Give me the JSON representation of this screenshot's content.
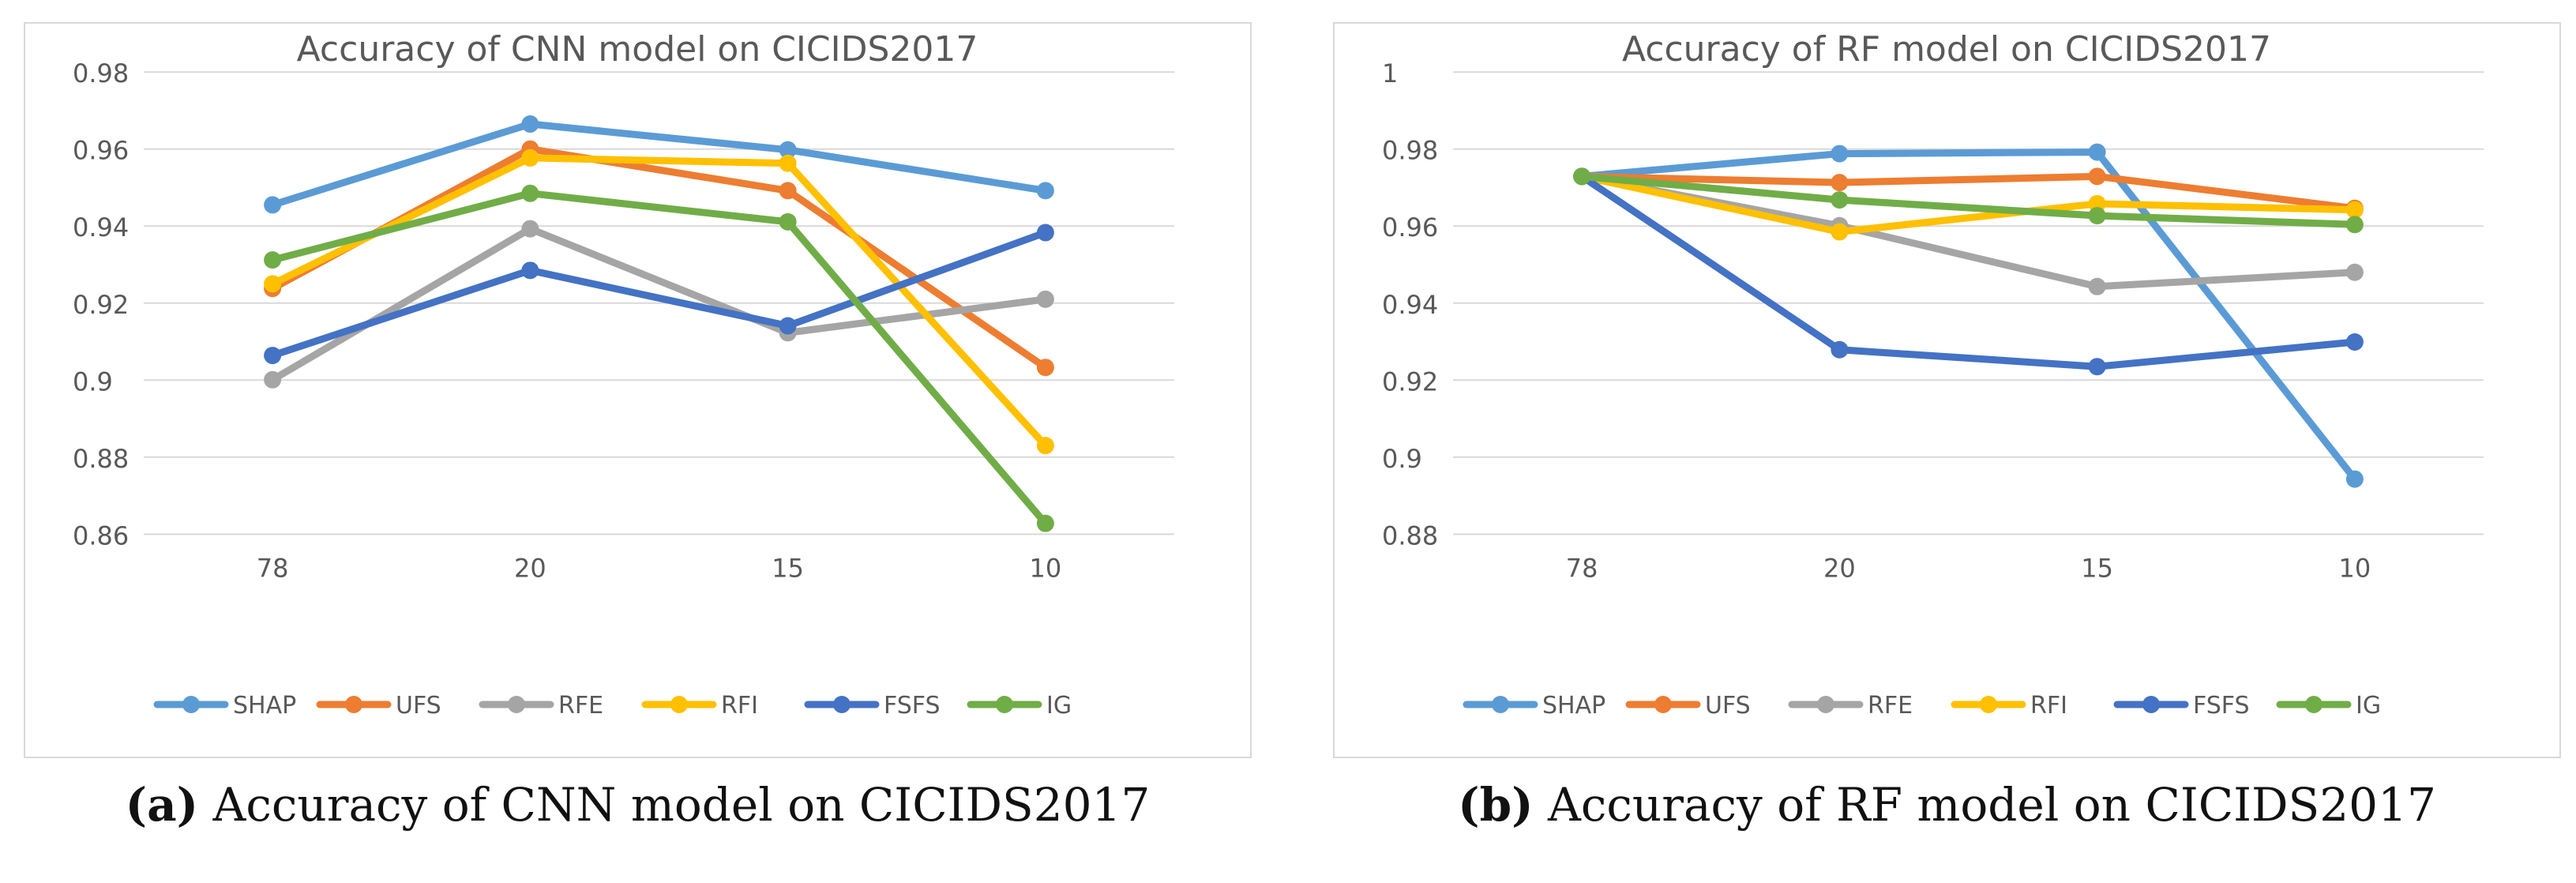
{
  "chart_data": [
    {
      "type": "line",
      "title": "Accuracy of CNN model on CICIDS2017",
      "xlabel": "",
      "ylabel": "",
      "categories": [
        "78",
        "20",
        "15",
        "10"
      ],
      "ylim": [
        0.86,
        0.98
      ],
      "yticks": [
        0.86,
        0.88,
        0.9,
        0.92,
        0.94,
        0.96,
        0.98
      ],
      "ytick_labels": [
        "0.86",
        "0.88",
        "0.9",
        "0.92",
        "0.94",
        "0.96",
        "0.98"
      ],
      "grid": true,
      "legend_position": "bottom",
      "series": [
        {
          "name": "SHAP",
          "color": "#5B9BD5",
          "values": [
            0.9455,
            0.9665,
            0.9598,
            0.9492
          ]
        },
        {
          "name": "UFS",
          "color": "#ED7D31",
          "values": [
            0.9238,
            0.96,
            0.9492,
            0.9033
          ]
        },
        {
          "name": "RFE",
          "color": "#A5A5A5",
          "values": [
            0.9001,
            0.9393,
            0.9123,
            0.921
          ]
        },
        {
          "name": "RFI",
          "color": "#FFC000",
          "values": [
            0.925,
            0.9577,
            0.9563,
            0.883
          ]
        },
        {
          "name": "FSFS",
          "color": "#4472C4",
          "values": [
            0.9064,
            0.9285,
            0.9141,
            0.9383
          ]
        },
        {
          "name": "IG",
          "color": "#70AD47",
          "values": [
            0.9312,
            0.9485,
            0.9411,
            0.8628
          ]
        }
      ]
    },
    {
      "type": "line",
      "title": "Accuracy of RF model on CICIDS2017",
      "xlabel": "",
      "ylabel": "",
      "categories": [
        "78",
        "20",
        "15",
        "10"
      ],
      "ylim": [
        0.88,
        1.0
      ],
      "yticks": [
        0.88,
        0.9,
        0.92,
        0.94,
        0.96,
        0.98,
        1.0
      ],
      "ytick_labels": [
        "0.88",
        "0.9",
        "0.92",
        "0.94",
        "0.96",
        "0.98",
        "1"
      ],
      "grid": true,
      "legend_position": "bottom",
      "series": [
        {
          "name": "SHAP",
          "color": "#5B9BD5",
          "values": [
            0.9729,
            0.9788,
            0.9792,
            0.8943
          ]
        },
        {
          "name": "UFS",
          "color": "#ED7D31",
          "values": [
            0.9729,
            0.9713,
            0.9729,
            0.9646
          ]
        },
        {
          "name": "RFE",
          "color": "#A5A5A5",
          "values": [
            0.9729,
            0.9601,
            0.9443,
            0.948
          ]
        },
        {
          "name": "RFI",
          "color": "#FFC000",
          "values": [
            0.9729,
            0.9585,
            0.9658,
            0.9642
          ]
        },
        {
          "name": "FSFS",
          "color": "#4472C4",
          "values": [
            0.9729,
            0.9279,
            0.9235,
            0.9299
          ]
        },
        {
          "name": "IG",
          "color": "#70AD47",
          "values": [
            0.9729,
            0.9668,
            0.9627,
            0.9604
          ]
        }
      ]
    }
  ],
  "captions": [
    {
      "tag": "(a)",
      "text": "Accuracy of CNN model on CICIDS2017"
    },
    {
      "tag": "(b)",
      "text": "Accuracy of RF model on CICIDS2017"
    }
  ]
}
